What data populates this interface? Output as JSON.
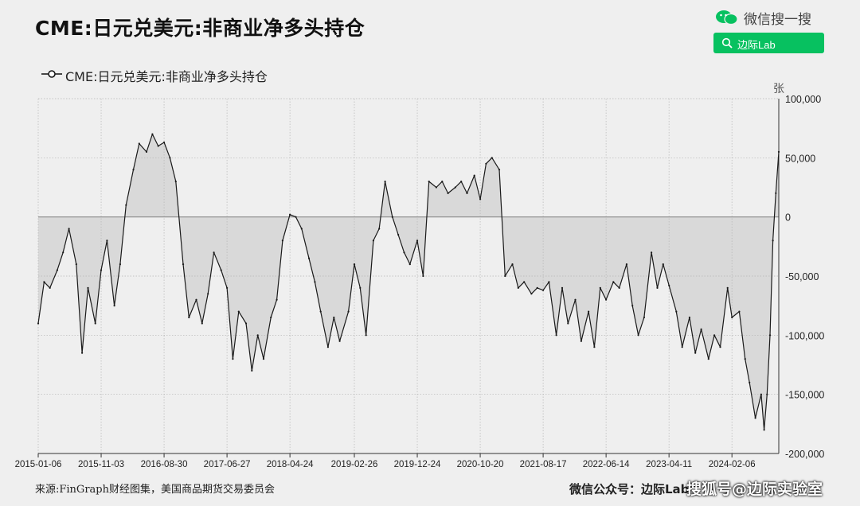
{
  "title": "CME:日元兑美元:非商业净多头持仓",
  "wechat": {
    "search_label": "微信搜一搜",
    "button_label": "边际Lab",
    "brand_color": "#07c160"
  },
  "footer": {
    "source": "来源:FinGraph财经图集，美国商品期货交易委员会",
    "account": "微信公众号：边际Lab"
  },
  "watermark": "搜狐号@边际实验室",
  "chart_data": {
    "type": "line",
    "title": "CME:日元兑美元:非商业净多头持仓",
    "series": [
      {
        "name": "CME:日元兑美元:非商业净多头持仓",
        "fill": "area-to-zero"
      }
    ],
    "unit": "张",
    "ylim": [
      -200000,
      100000
    ],
    "yticks": [
      {
        "value": 100000,
        "label": "100,000"
      },
      {
        "value": 50000,
        "label": "50,000"
      },
      {
        "value": 0,
        "label": "0"
      },
      {
        "value": -50000,
        "label": "-50,000"
      },
      {
        "value": -100000,
        "label": "-100,000"
      },
      {
        "value": -150000,
        "label": "-150,000"
      },
      {
        "value": -200000,
        "label": "-200,000"
      }
    ],
    "xticks": [
      "2015-01-06",
      "2015-11-03",
      "2016-08-30",
      "2017-06-27",
      "2018-04-24",
      "2019-02-26",
      "2019-12-24",
      "2020-10-20",
      "2021-08-17",
      "2022-06-14",
      "2023-04-11",
      "2024-02-06"
    ],
    "grid": true,
    "colors": {
      "line": "#1a1a1a",
      "fill": "#d9d9d9",
      "grid": "#b5b5b5",
      "zero": "#8a8a8a"
    },
    "x": [
      "2015-01-06",
      "2015-02-03",
      "2015-03-03",
      "2015-04-07",
      "2015-05-05",
      "2015-06-02",
      "2015-07-07",
      "2015-08-04",
      "2015-09-01",
      "2015-10-06",
      "2015-11-03",
      "2015-12-01",
      "2016-01-05",
      "2016-02-02",
      "2016-03-01",
      "2016-04-05",
      "2016-05-03",
      "2016-06-07",
      "2016-07-05",
      "2016-08-02",
      "2016-08-30",
      "2016-09-27",
      "2016-10-25",
      "2016-11-29",
      "2016-12-27",
      "2017-01-31",
      "2017-02-28",
      "2017-03-28",
      "2017-04-25",
      "2017-05-30",
      "2017-06-27",
      "2017-07-25",
      "2017-08-22",
      "2017-09-26",
      "2017-10-24",
      "2017-11-21",
      "2017-12-19",
      "2018-01-23",
      "2018-02-20",
      "2018-03-20",
      "2018-04-24",
      "2018-05-22",
      "2018-06-19",
      "2018-07-24",
      "2018-08-21",
      "2018-09-18",
      "2018-10-23",
      "2018-11-20",
      "2018-12-18",
      "2019-01-29",
      "2019-02-26",
      "2019-03-26",
      "2019-04-23",
      "2019-05-28",
      "2019-06-25",
      "2019-07-23",
      "2019-08-27",
      "2019-09-24",
      "2019-10-22",
      "2019-11-19",
      "2019-12-24",
      "2020-01-21",
      "2020-02-18",
      "2020-03-24",
      "2020-04-21",
      "2020-05-19",
      "2020-06-23",
      "2020-07-21",
      "2020-08-18",
      "2020-09-22",
      "2020-10-20",
      "2020-11-17",
      "2020-12-15",
      "2021-01-19",
      "2021-02-16",
      "2021-03-23",
      "2021-04-20",
      "2021-05-18",
      "2021-06-22",
      "2021-07-20",
      "2021-08-17",
      "2021-09-14",
      "2021-10-19",
      "2021-11-16",
      "2021-12-14",
      "2022-01-18",
      "2022-02-15",
      "2022-03-22",
      "2022-04-19",
      "2022-05-17",
      "2022-06-14",
      "2022-07-19",
      "2022-08-16",
      "2022-09-20",
      "2022-10-18",
      "2022-11-15",
      "2022-12-13",
      "2023-01-17",
      "2023-02-14",
      "2023-03-14",
      "2023-04-11",
      "2023-05-16",
      "2023-06-13",
      "2023-07-18",
      "2023-08-15",
      "2023-09-12",
      "2023-10-17",
      "2023-11-14",
      "2023-12-12",
      "2024-01-16",
      "2024-02-06",
      "2024-03-12",
      "2024-04-09",
      "2024-04-30",
      "2024-05-28",
      "2024-06-25",
      "2024-07-09",
      "2024-07-23",
      "2024-08-06",
      "2024-08-20",
      "2024-09-03",
      "2024-09-17"
    ],
    "values": [
      -90000,
      -55000,
      -60000,
      -45000,
      -30000,
      -10000,
      -40000,
      -115000,
      -60000,
      -90000,
      -45000,
      -20000,
      -75000,
      -40000,
      10000,
      40000,
      62000,
      55000,
      70000,
      60000,
      63000,
      50000,
      30000,
      -40000,
      -85000,
      -70000,
      -90000,
      -65000,
      -30000,
      -45000,
      -60000,
      -120000,
      -80000,
      -90000,
      -130000,
      -100000,
      -120000,
      -85000,
      -70000,
      -20000,
      2000,
      0,
      -10000,
      -35000,
      -55000,
      -80000,
      -110000,
      -85000,
      -105000,
      -80000,
      -40000,
      -60000,
      -100000,
      -20000,
      -10000,
      30000,
      0,
      -15000,
      -30000,
      -40000,
      -20000,
      -50000,
      30000,
      25000,
      30000,
      20000,
      25000,
      30000,
      20000,
      35000,
      15000,
      45000,
      50000,
      40000,
      -50000,
      -40000,
      -60000,
      -55000,
      -65000,
      -60000,
      -62000,
      -55000,
      -100000,
      -60000,
      -90000,
      -70000,
      -105000,
      -80000,
      -110000,
      -60000,
      -70000,
      -55000,
      -60000,
      -40000,
      -75000,
      -100000,
      -85000,
      -30000,
      -60000,
      -40000,
      -58000,
      -80000,
      -110000,
      -85000,
      -115000,
      -95000,
      -120000,
      -100000,
      -110000,
      -60000,
      -85000,
      -80000,
      -120000,
      -140000,
      -170000,
      -150000,
      -180000,
      -150000,
      -100000,
      -20000,
      20000,
      55000
    ]
  }
}
